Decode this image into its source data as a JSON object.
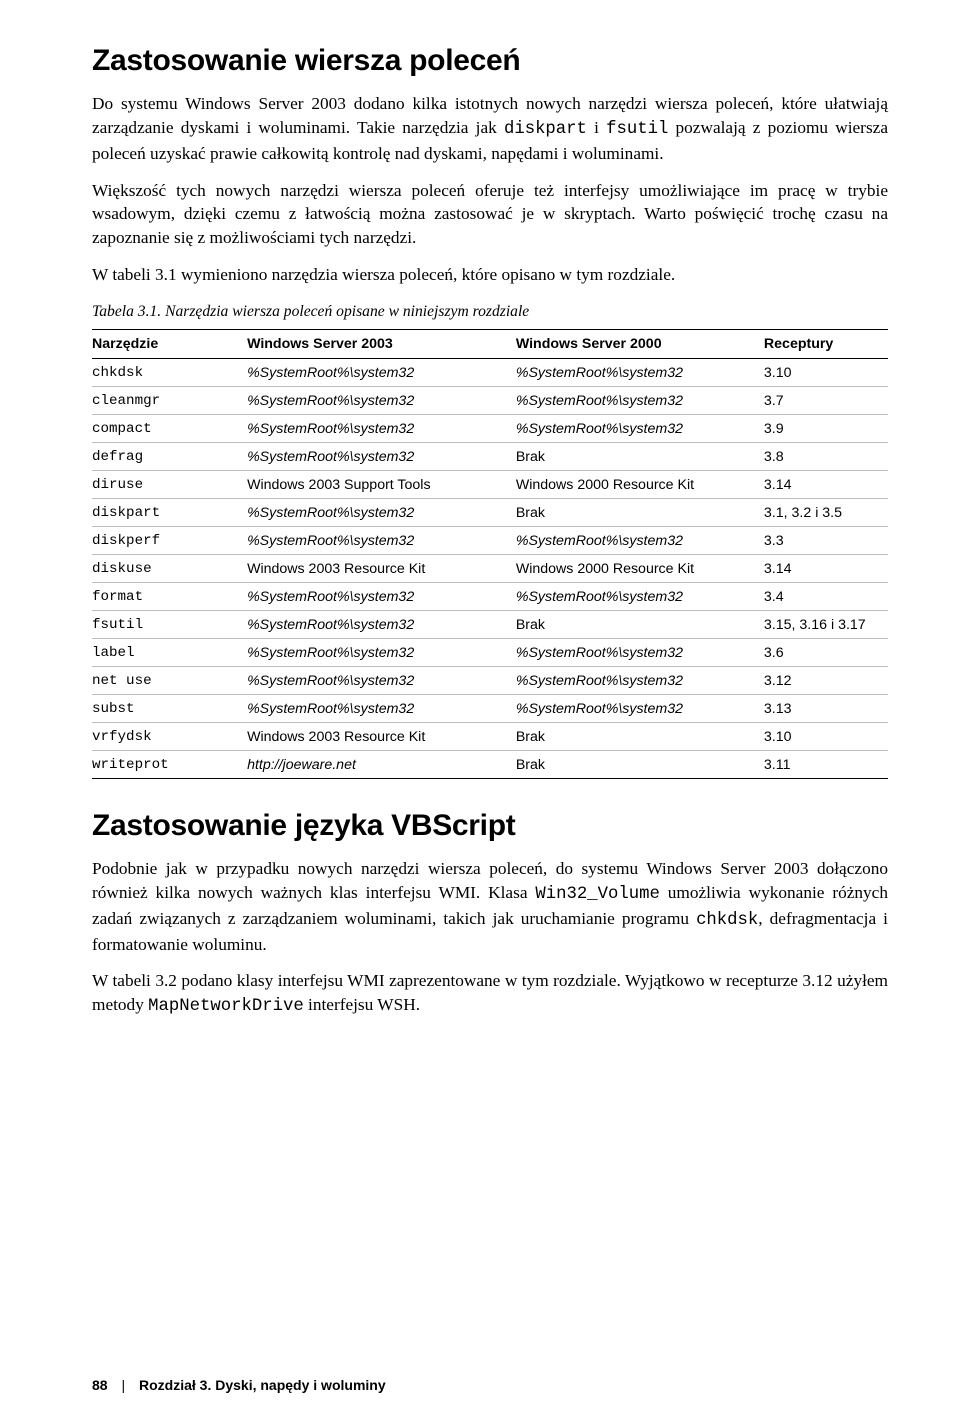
{
  "section1": {
    "heading": "Zastosowanie wiersza poleceń",
    "p1_a": "Do systemu Windows Server 2003 dodano kilka istotnych nowych narzędzi wiersza poleceń, które ułatwiają zarządzanie dyskami i woluminami. Takie narzędzia jak ",
    "p1_m1": "diskpart",
    "p1_b": " i ",
    "p1_m2": "fsutil",
    "p1_c": " pozwalają z poziomu wiersza poleceń uzyskać prawie całkowitą kontrolę nad dyskami, napędami i woluminami.",
    "p2": "Większość tych nowych narzędzi wiersza poleceń oferuje też interfejsy umożliwiające im pracę w trybie wsadowym, dzięki czemu z łatwością można zastosować je w skryptach. Warto poświęcić trochę czasu na zapoznanie się z możliwościami tych narzędzi.",
    "p3": "W tabeli 3.1 wymieniono narzędzia wiersza poleceń, które opisano w tym rozdziale."
  },
  "table": {
    "caption": "Tabela 3.1. Narzędzia wiersza poleceń opisane w niniejszym rozdziale",
    "headers": [
      "Narzędzie",
      "Windows Server 2003",
      "Windows Server 2000",
      "Receptury"
    ],
    "rows": [
      {
        "name": "chkdsk",
        "c1": "%SystemRoot%\\system32",
        "c1s": "italic",
        "c2": "%SystemRoot%\\system32",
        "c2s": "italic",
        "rec": "3.10"
      },
      {
        "name": "cleanmgr",
        "c1": "%SystemRoot%\\system32",
        "c1s": "italic",
        "c2": "%SystemRoot%\\system32",
        "c2s": "italic",
        "rec": "3.7"
      },
      {
        "name": "compact",
        "c1": "%SystemRoot%\\system32",
        "c1s": "italic",
        "c2": "%SystemRoot%\\system32",
        "c2s": "italic",
        "rec": "3.9"
      },
      {
        "name": "defrag",
        "c1": "%SystemRoot%\\system32",
        "c1s": "italic",
        "c2": "Brak",
        "c2s": "plain",
        "rec": "3.8"
      },
      {
        "name": "diruse",
        "c1": "Windows 2003 Support Tools",
        "c1s": "plain",
        "c2": "Windows 2000 Resource Kit",
        "c2s": "plain",
        "rec": "3.14"
      },
      {
        "name": "diskpart",
        "c1": "%SystemRoot%\\system32",
        "c1s": "italic",
        "c2": "Brak",
        "c2s": "plain",
        "rec": "3.1, 3.2 i 3.5"
      },
      {
        "name": "diskperf",
        "c1": "%SystemRoot%\\system32",
        "c1s": "italic",
        "c2": "%SystemRoot%\\system32",
        "c2s": "italic",
        "rec": "3.3"
      },
      {
        "name": "diskuse",
        "c1": "Windows 2003 Resource Kit",
        "c1s": "plain",
        "c2": "Windows 2000 Resource Kit",
        "c2s": "plain",
        "rec": "3.14"
      },
      {
        "name": "format",
        "c1": "%SystemRoot%\\system32",
        "c1s": "italic",
        "c2": "%SystemRoot%\\system32",
        "c2s": "italic",
        "rec": "3.4"
      },
      {
        "name": "fsutil",
        "c1": "%SystemRoot%\\system32",
        "c1s": "italic",
        "c2": "Brak",
        "c2s": "plain",
        "rec": "3.15, 3.16 i 3.17"
      },
      {
        "name": "label",
        "c1": "%SystemRoot%\\system32",
        "c1s": "italic",
        "c2": "%SystemRoot%\\system32",
        "c2s": "italic",
        "rec": "3.6"
      },
      {
        "name": "net use",
        "c1": "%SystemRoot%\\system32",
        "c1s": "italic",
        "c2": "%SystemRoot%\\system32",
        "c2s": "italic",
        "rec": "3.12"
      },
      {
        "name": "subst",
        "c1": "%SystemRoot%\\system32",
        "c1s": "italic",
        "c2": "%SystemRoot%\\system32",
        "c2s": "italic",
        "rec": "3.13"
      },
      {
        "name": "vrfydsk",
        "c1": "Windows 2003 Resource Kit",
        "c1s": "plain",
        "c2": "Brak",
        "c2s": "plain",
        "rec": "3.10"
      },
      {
        "name": "writeprot",
        "c1": "http://joeware.net",
        "c1s": "italic",
        "c2": "Brak",
        "c2s": "plain",
        "rec": "3.11"
      }
    ]
  },
  "section2": {
    "heading": "Zastosowanie języka VBScript",
    "p1_a": "Podobnie jak w przypadku nowych narzędzi wiersza poleceń, do systemu Windows Server 2003 dołączono również kilka nowych ważnych klas interfejsu WMI. Klasa ",
    "p1_m1": "Win32_Volume",
    "p1_b": " umożliwia wykonanie różnych zadań związanych z zarządzaniem woluminami, takich jak uruchamianie programu ",
    "p1_m2": "chkdsk",
    "p1_c": ", defragmentacja i formatowanie woluminu.",
    "p2_a": "W tabeli 3.2 podano klasy interfejsu WMI zaprezentowane w tym rozdziale. Wyjątkowo w recepturze 3.12 użyłem metody ",
    "p2_m1": "MapNetworkDrive",
    "p2_b": " interfejsu WSH."
  },
  "footer": {
    "page": "88",
    "sep": "|",
    "chapter": "Rozdział 3. Dyski, napędy i woluminy"
  }
}
